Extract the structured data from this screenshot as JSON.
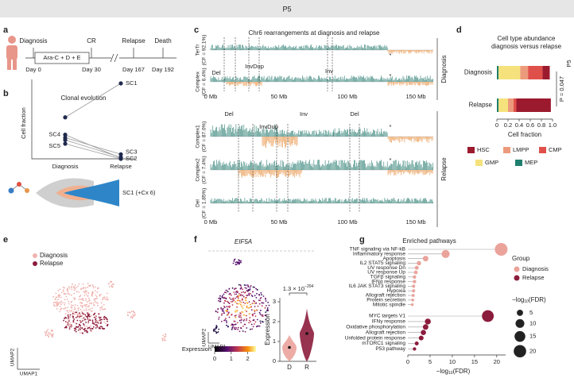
{
  "header": {
    "title": "P5"
  },
  "panel_labels": [
    "a",
    "b",
    "c",
    "d",
    "e",
    "f",
    "g"
  ],
  "timeline": {
    "treatment": "Ara-C + D + E",
    "events": [
      {
        "label": "Diagnosis",
        "day": "Day 0"
      },
      {
        "label": "CR",
        "day": "Day 30"
      },
      {
        "label": "Relapse",
        "day": "Day 167"
      },
      {
        "label": "Death",
        "day": "Day 192"
      }
    ]
  },
  "genome_tracks": {
    "title": "Chr6 rearrangements at diagnosis and relapse",
    "groups": [
      {
        "name": "Diagnosis",
        "tracks": [
          {
            "name": "TerTr",
            "cf": "(CF = 92.1%)"
          },
          {
            "name": "Complex",
            "cf": "(CF = 6.4%)"
          }
        ],
        "axis_labels": [
          "0 Mb",
          "50 Mb",
          "100 Mb",
          "150 Mb"
        ],
        "annotations": [
          "Del",
          "InvDup",
          "Inv",
          "*",
          "*"
        ]
      },
      {
        "name": "Relapse",
        "tracks": [
          {
            "name": "Complex1",
            "cf": "(CF = 87.0%)"
          },
          {
            "name": "Complex2",
            "cf": "(CF = 7.4%)"
          },
          {
            "name": "Del",
            "cf": "(CF = 1.85%)"
          }
        ],
        "axis_labels": [
          "0 Mb",
          "50 Mb",
          "100 Mb",
          "150 Mb"
        ],
        "annotations": [
          "Del",
          "InvDup",
          "Inv",
          "Del",
          "*",
          "*"
        ]
      }
    ]
  },
  "umap": {
    "legend": [
      {
        "name": "Diagnosis",
        "color": "#f0b4b0"
      },
      {
        "name": "Relapse",
        "color": "#8c1c3c"
      }
    ],
    "xlabel": "UMAP1",
    "ylabel": "UMAP2"
  },
  "chart_data": [
    {
      "type": "line",
      "title": "Clonal evolution",
      "ylabel": "Cell fraction",
      "categories": [
        "Diagnosis",
        "Relapse"
      ],
      "ylim": [
        0,
        1
      ],
      "marker_color": "#1f2a4d",
      "series": [
        {
          "name": "SC1",
          "color": "#3a7cc2",
          "values": [
            0.55,
            1.0
          ]
        },
        {
          "name": "SC2",
          "color": "#3a7cc2",
          "values": [
            0.25,
            0.02
          ]
        },
        {
          "name": "SC3",
          "color": "#e8954a",
          "values": [
            0.28,
            0.06
          ]
        },
        {
          "name": "SC4",
          "color": "#e8954a",
          "values": [
            0.32,
            0.01
          ]
        },
        {
          "name": "SC5",
          "color": "#e8954a",
          "values": [
            0.2,
            0.0
          ]
        }
      ],
      "annotation": "SC1 (+Cx 6)"
    },
    {
      "type": "stacked_bar",
      "title": "Cell type abundance",
      "subtitle": "diagnosis versus relapse",
      "categories": [
        "Diagnosis",
        "Relapse"
      ],
      "series": [
        {
          "name": "MEP",
          "color": "#1f7f6e",
          "values": [
            0.03,
            0.03
          ]
        },
        {
          "name": "GMP",
          "color": "#f5e27c",
          "values": [
            0.39,
            0.17
          ]
        },
        {
          "name": "LMPP",
          "color": "#ec9a7c",
          "values": [
            0.14,
            0.1
          ]
        },
        {
          "name": "CMP",
          "color": "#e0504a",
          "values": [
            0.26,
            0.05
          ]
        },
        {
          "name": "HSC",
          "color": "#9c1a2e",
          "values": [
            0.13,
            0.62
          ]
        }
      ],
      "xlim": [
        0,
        1
      ],
      "xticks": [
        0,
        0.2,
        0.4,
        0.6,
        0.8,
        {
          "value": 1,
          "label": "1.0"
        }
      ],
      "xlabel": "Cell fraction",
      "group_label": "P5",
      "p_value": "P = 0.047"
    },
    {
      "type": "violin",
      "title": "EIF5A",
      "categories": [
        "D",
        "R"
      ],
      "colors": [
        "#eaa39b",
        "#8c1c3c"
      ],
      "values": [
        0.7,
        1.4
      ],
      "ylabel": "Expression",
      "ylim": [
        0,
        3.2
      ],
      "yticks": [
        0,
        1,
        2,
        3
      ],
      "annotation": {
        "base": "1.3 × 10",
        "exponent": "−204"
      },
      "umap_xlabel": "UMAP1",
      "umap_ylabel": "UMAP2",
      "colorbar": {
        "label": "Expression",
        "lim": [
          0,
          2.5
        ],
        "ticks": [
          0,
          1,
          2
        ]
      }
    },
    {
      "type": "lollipop",
      "title": "Enriched pathways",
      "xlim": [
        0,
        22
      ],
      "xticks": [
        0,
        5,
        10,
        15,
        20
      ],
      "xlabel": {
        "text": "−log",
        "sub": "10",
        "suffix": "(FDR)"
      },
      "legend_title": "Group",
      "groups": [
        {
          "name": "Diagnosis",
          "color": "#eaa39b",
          "categories": [
            "TNF signaling via NF-kB",
            "Inflammatory response",
            "Apoptosis",
            "IL2 STAT5 signaling",
            "UV response Dn",
            "UV response Up",
            "TGFβ signaling",
            "IFNα response",
            "IL6 JAK STAT3 signaling",
            "Hypoxia",
            "Allograft rejection",
            "Protein secretion",
            "Mitotic spindle"
          ],
          "values": [
            21,
            8.5,
            4,
            2.5,
            2,
            1.8,
            1.5,
            1.5,
            1.3,
            1.3,
            1.2,
            1.1,
            1.0
          ]
        },
        {
          "name": "Relapse",
          "color": "#8c1c3c",
          "categories": [
            "MYC targets V1",
            "IFNγ response",
            "Oxidative phosphorylation",
            "Allograft rejection",
            "Unfolded protein response",
            "mTORC1 signaling",
            "P53 pathway"
          ],
          "values": [
            18,
            4.5,
            4,
            3.5,
            3,
            2,
            1.5
          ]
        }
      ],
      "size_legend": {
        "title": {
          "text": "−log",
          "sub": "10",
          "suffix": "(FDR)"
        },
        "values": [
          5,
          10,
          15,
          20
        ]
      }
    }
  ]
}
